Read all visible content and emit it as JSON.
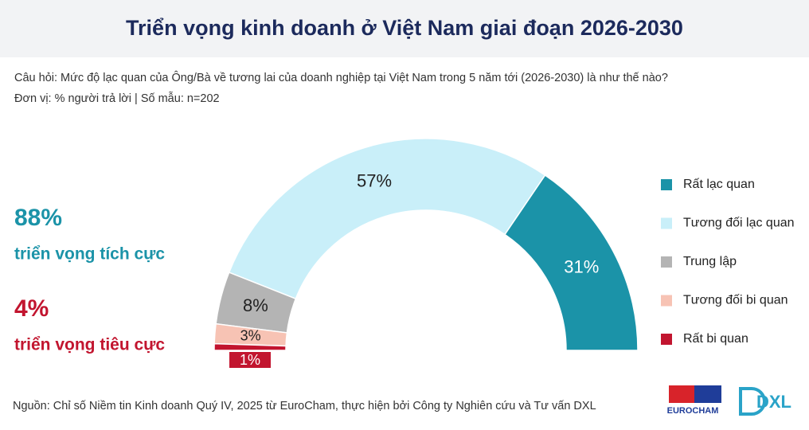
{
  "chart_data": {
    "type": "half-donut",
    "title": "Triển vọng kinh doanh ở Việt Nam giai đoạn 2026-2030",
    "subtitle": [
      "Câu hỏi: Mức độ lạc quan của Ông/Bà về tương lai của doanh nghiệp tại Việt Nam trong 5 năm tới (2026-2030) là như thế nào?",
      "Đơn vị: % người trả lời | Số mẫu: n=202"
    ],
    "categories": [
      "Rất lạc quan",
      "Tương đối lạc quan",
      "Trung lập",
      "Tương đối bi quan",
      "Rất bi quan"
    ],
    "values": [
      31,
      57,
      8,
      3,
      1
    ],
    "value_labels": [
      "31%",
      "57%",
      "8%",
      "3%",
      "1%"
    ],
    "colors": [
      "#1b93a8",
      "#c9eff9",
      "#b4b4b4",
      "#f7c3b4",
      "#c2152f"
    ],
    "legend": "right",
    "annotations": [
      {
        "text": "88%",
        "caption": "triển vọng tích cực",
        "color": "#1b93a8"
      },
      {
        "text": "4%",
        "caption": "triển vọng tiêu cực",
        "color": "#c2152f"
      }
    ],
    "source": "Nguồn: Chỉ số Niềm tin Kinh doanh Quý IV, 2025 từ EuroCham, thực hiện bởi Công ty Nghiên cứu và Tư vấn DXL",
    "logos": [
      "EUROCHAM",
      "DXL"
    ]
  }
}
